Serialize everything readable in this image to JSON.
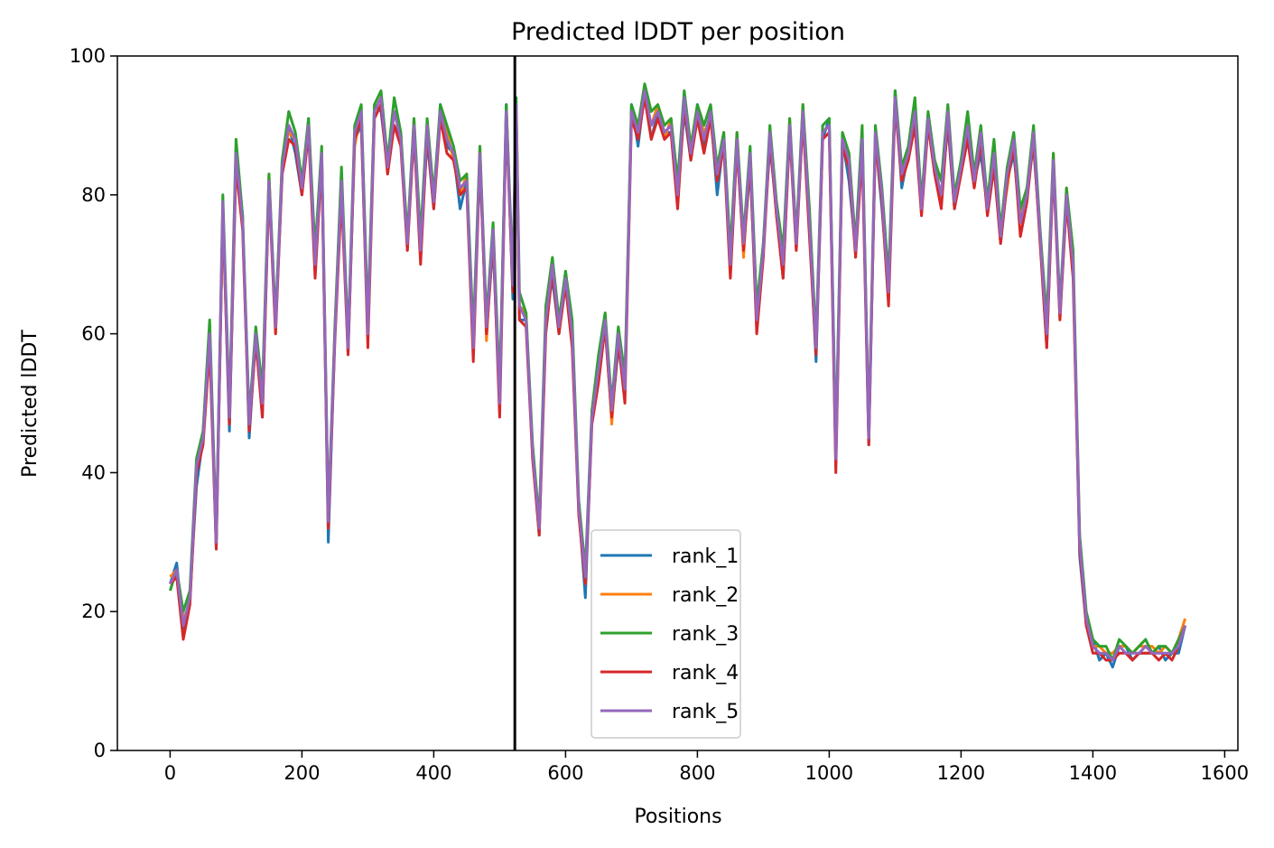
{
  "chart_data": {
    "type": "line",
    "title": "Predicted lDDT per position",
    "xlabel": "Positions",
    "ylabel": "Predicted lDDT",
    "xlim": [
      -80,
      1620
    ],
    "ylim": [
      0,
      100
    ],
    "xticks": [
      "0",
      "200",
      "400",
      "600",
      "800",
      "1000",
      "1200",
      "1400",
      "1600"
    ],
    "yticks": [
      "0",
      "20",
      "40",
      "60",
      "80",
      "100"
    ],
    "grid": false,
    "legend_position": "lower-center",
    "vline_x": 523,
    "series": [
      {
        "name": "rank_1",
        "color": "#1f77b4"
      },
      {
        "name": "rank_2",
        "color": "#ff7f0e"
      },
      {
        "name": "rank_3",
        "color": "#2ca02c"
      },
      {
        "name": "rank_4",
        "color": "#d62728"
      },
      {
        "name": "rank_5",
        "color": "#9467bd"
      }
    ],
    "x": [
      0,
      10,
      20,
      30,
      40,
      50,
      60,
      70,
      80,
      90,
      100,
      110,
      120,
      130,
      140,
      150,
      160,
      170,
      180,
      190,
      200,
      210,
      220,
      230,
      240,
      250,
      260,
      270,
      280,
      290,
      300,
      310,
      320,
      330,
      340,
      350,
      360,
      370,
      380,
      390,
      400,
      410,
      420,
      430,
      440,
      450,
      460,
      470,
      480,
      490,
      500,
      510,
      520,
      525,
      530,
      540,
      550,
      560,
      570,
      580,
      590,
      600,
      610,
      620,
      630,
      640,
      650,
      660,
      670,
      680,
      690,
      700,
      710,
      720,
      730,
      740,
      750,
      760,
      770,
      780,
      790,
      800,
      810,
      820,
      830,
      840,
      850,
      860,
      870,
      880,
      890,
      900,
      910,
      920,
      930,
      940,
      950,
      960,
      970,
      980,
      990,
      1000,
      1010,
      1020,
      1030,
      1040,
      1050,
      1060,
      1070,
      1080,
      1090,
      1100,
      1110,
      1120,
      1130,
      1140,
      1150,
      1160,
      1170,
      1180,
      1190,
      1200,
      1210,
      1220,
      1230,
      1240,
      1250,
      1260,
      1270,
      1280,
      1290,
      1300,
      1310,
      1320,
      1330,
      1340,
      1350,
      1360,
      1370,
      1380,
      1390,
      1400,
      1410,
      1420,
      1430,
      1440,
      1450,
      1460,
      1470,
      1480,
      1490,
      1500,
      1510,
      1520,
      1530,
      1540
    ],
    "base_values": [
      24,
      26,
      18,
      22,
      40,
      45,
      60,
      30,
      78,
      48,
      86,
      76,
      46,
      60,
      50,
      82,
      60,
      84,
      90,
      88,
      80,
      90,
      70,
      86,
      32,
      60,
      82,
      58,
      88,
      92,
      60,
      92,
      93,
      84,
      92,
      88,
      72,
      90,
      72,
      90,
      78,
      92,
      88,
      86,
      80,
      82,
      58,
      86,
      60,
      75,
      50,
      92,
      66,
      93,
      64,
      62,
      42,
      32,
      62,
      70,
      60,
      68,
      60,
      35,
      24,
      48,
      55,
      62,
      48,
      60,
      52,
      92,
      88,
      95,
      90,
      92,
      88,
      90,
      80,
      94,
      85,
      92,
      88,
      92,
      82,
      88,
      70,
      88,
      72,
      86,
      62,
      72,
      88,
      78,
      70,
      90,
      72,
      92,
      76,
      58,
      88,
      90,
      42,
      88,
      84,
      72,
      88,
      45,
      88,
      80,
      66,
      94,
      82,
      86,
      92,
      78,
      90,
      84,
      80,
      92,
      78,
      84,
      90,
      82,
      88,
      78,
      86,
      74,
      82,
      88,
      76,
      80,
      88,
      74,
      60,
      85,
      62,
      80,
      70,
      30,
      18,
      15,
      14,
      14,
      13,
      15,
      14,
      14,
      14,
      15,
      14,
      14,
      14,
      14,
      15,
      18
    ],
    "offsets": [
      [
        0,
        1,
        -1,
        0,
        -2,
        0,
        1,
        -1,
        0,
        -2,
        0,
        1,
        -1,
        0,
        -2,
        0,
        1,
        -1,
        0,
        -2,
        0,
        1,
        -1,
        0,
        -2,
        0,
        1,
        -1,
        0,
        -2,
        0,
        1,
        -1,
        0,
        -2,
        0,
        1,
        -1,
        0,
        -2,
        0,
        1,
        -1,
        0,
        -2,
        0,
        1,
        -1,
        0,
        -2,
        0,
        1,
        -1,
        0,
        -2,
        0,
        1,
        -1,
        0,
        -2,
        0,
        1,
        -1,
        0,
        -2,
        0,
        1,
        -1,
        0,
        -2,
        0,
        1,
        -1,
        0,
        -2,
        0,
        1,
        -1,
        0,
        -2,
        0,
        1,
        -1,
        0,
        -2,
        0,
        1,
        -1,
        0,
        -2,
        0,
        1,
        -1,
        0,
        -2,
        0,
        1,
        -1,
        0,
        -2,
        0,
        1,
        -1,
        0,
        -2,
        0,
        1,
        -1,
        0,
        -2,
        0,
        1,
        -1,
        0,
        -2,
        0,
        1,
        -1,
        0,
        -2,
        0,
        1,
        -1,
        0,
        -2,
        0,
        1,
        -1,
        0,
        -2,
        0,
        1,
        -1,
        0,
        -2,
        0,
        1,
        -1,
        0,
        -2,
        0,
        1,
        -1,
        0,
        -1,
        0,
        1,
        -1,
        0,
        -1,
        0,
        1,
        -1,
        0,
        -1,
        0
      ],
      [
        1,
        0,
        1,
        -1,
        0,
        1,
        0,
        1,
        -1,
        0,
        1,
        0,
        1,
        -1,
        0,
        1,
        0,
        1,
        -1,
        0,
        1,
        0,
        1,
        -1,
        0,
        1,
        0,
        1,
        -1,
        0,
        1,
        0,
        1,
        -1,
        0,
        1,
        0,
        1,
        -1,
        0,
        1,
        0,
        1,
        -1,
        0,
        1,
        0,
        1,
        -1,
        0,
        1,
        0,
        1,
        -1,
        0,
        1,
        0,
        1,
        -1,
        0,
        1,
        0,
        1,
        -1,
        0,
        1,
        0,
        1,
        -1,
        0,
        1,
        0,
        1,
        -1,
        0,
        1,
        0,
        1,
        -1,
        0,
        1,
        0,
        1,
        -1,
        0,
        1,
        0,
        1,
        -1,
        0,
        1,
        0,
        1,
        -1,
        0,
        1,
        0,
        1,
        -1,
        0,
        1,
        0,
        1,
        -1,
        0,
        1,
        0,
        1,
        -1,
        0,
        1,
        0,
        1,
        -1,
        0,
        1,
        0,
        1,
        -1,
        0,
        1,
        0,
        1,
        -1,
        0,
        1,
        0,
        1,
        -1,
        0,
        1,
        0,
        1,
        -1,
        0,
        1,
        0,
        1,
        -1,
        0,
        1,
        0,
        1,
        0,
        1,
        0,
        1,
        0,
        1,
        0,
        1,
        0,
        1,
        0,
        1,
        1
      ],
      [
        -1,
        0,
        2,
        1,
        2,
        1,
        2,
        1,
        2,
        1,
        2,
        1,
        2,
        1,
        2,
        1,
        2,
        1,
        2,
        1,
        2,
        1,
        2,
        1,
        2,
        1,
        2,
        1,
        2,
        1,
        2,
        1,
        2,
        1,
        2,
        1,
        2,
        1,
        2,
        1,
        2,
        1,
        2,
        1,
        2,
        1,
        2,
        1,
        2,
        1,
        2,
        1,
        2,
        1,
        2,
        1,
        2,
        1,
        2,
        1,
        2,
        1,
        2,
        1,
        2,
        1,
        2,
        1,
        2,
        1,
        2,
        1,
        2,
        1,
        2,
        1,
        2,
        1,
        2,
        1,
        2,
        1,
        2,
        1,
        2,
        1,
        2,
        1,
        2,
        1,
        2,
        1,
        2,
        1,
        2,
        1,
        2,
        1,
        2,
        1,
        2,
        1,
        2,
        1,
        2,
        1,
        2,
        1,
        2,
        1,
        2,
        1,
        2,
        1,
        2,
        1,
        2,
        1,
        2,
        1,
        2,
        1,
        2,
        1,
        2,
        1,
        2,
        1,
        2,
        1,
        2,
        1,
        2,
        1,
        2,
        1,
        2,
        1,
        2,
        1,
        2,
        1,
        1,
        1,
        0,
        1,
        1,
        0,
        1,
        1,
        0,
        1,
        1,
        0,
        1,
        0
      ],
      [
        0,
        -1,
        -2,
        -1,
        0,
        -1,
        -2,
        -1,
        0,
        -1,
        -2,
        -1,
        0,
        -1,
        -2,
        -1,
        0,
        -1,
        -2,
        -1,
        0,
        -1,
        -2,
        -1,
        0,
        -1,
        -2,
        -1,
        0,
        -1,
        -2,
        -1,
        0,
        -1,
        -2,
        -1,
        0,
        -1,
        -2,
        -1,
        0,
        -1,
        -2,
        -1,
        0,
        -1,
        -2,
        -1,
        0,
        -1,
        -2,
        -1,
        0,
        -1,
        -2,
        -1,
        0,
        -1,
        -2,
        -1,
        0,
        -1,
        -2,
        -1,
        0,
        -1,
        -2,
        -1,
        0,
        -1,
        -2,
        -1,
        0,
        -1,
        -2,
        -1,
        0,
        -1,
        -2,
        -1,
        0,
        -1,
        -2,
        -1,
        0,
        -1,
        -2,
        -1,
        0,
        -1,
        -2,
        -1,
        0,
        -1,
        -2,
        -1,
        0,
        -1,
        -2,
        -1,
        0,
        -1,
        -2,
        -1,
        0,
        -1,
        -2,
        -1,
        0,
        -1,
        -2,
        -1,
        0,
        -1,
        -2,
        -1,
        0,
        -1,
        -2,
        -1,
        0,
        -1,
        -2,
        -1,
        0,
        -1,
        -2,
        -1,
        0,
        -1,
        -2,
        -1,
        0,
        -1,
        -2,
        -1,
        0,
        -1,
        -2,
        -1,
        0,
        -1,
        0,
        -1,
        0,
        -1,
        0,
        -1,
        0,
        -1,
        0,
        -1,
        0,
        -1,
        0,
        0
      ],
      [
        0,
        0,
        0,
        0,
        1,
        0,
        0,
        0,
        1,
        0,
        0,
        0,
        1,
        0,
        0,
        0,
        1,
        0,
        0,
        0,
        1,
        0,
        0,
        0,
        1,
        0,
        0,
        0,
        1,
        0,
        0,
        0,
        1,
        0,
        0,
        0,
        1,
        0,
        0,
        0,
        1,
        0,
        0,
        0,
        1,
        0,
        0,
        0,
        1,
        0,
        0,
        0,
        1,
        0,
        0,
        0,
        1,
        0,
        0,
        0,
        1,
        0,
        0,
        0,
        1,
        0,
        0,
        0,
        1,
        0,
        0,
        0,
        1,
        0,
        0,
        0,
        1,
        0,
        0,
        0,
        1,
        0,
        0,
        0,
        1,
        0,
        0,
        0,
        1,
        0,
        0,
        0,
        1,
        0,
        0,
        0,
        1,
        0,
        0,
        0,
        1,
        0,
        0,
        0,
        1,
        0,
        0,
        0,
        1,
        0,
        0,
        0,
        1,
        0,
        0,
        0,
        1,
        0,
        0,
        0,
        1,
        0,
        0,
        0,
        1,
        0,
        0,
        0,
        1,
        0,
        0,
        0,
        1,
        0,
        0,
        0,
        1,
        0,
        0,
        0,
        1,
        0,
        0,
        0,
        0,
        0,
        0,
        0,
        0,
        0,
        0,
        0,
        0,
        0,
        0,
        0
      ]
    ]
  }
}
